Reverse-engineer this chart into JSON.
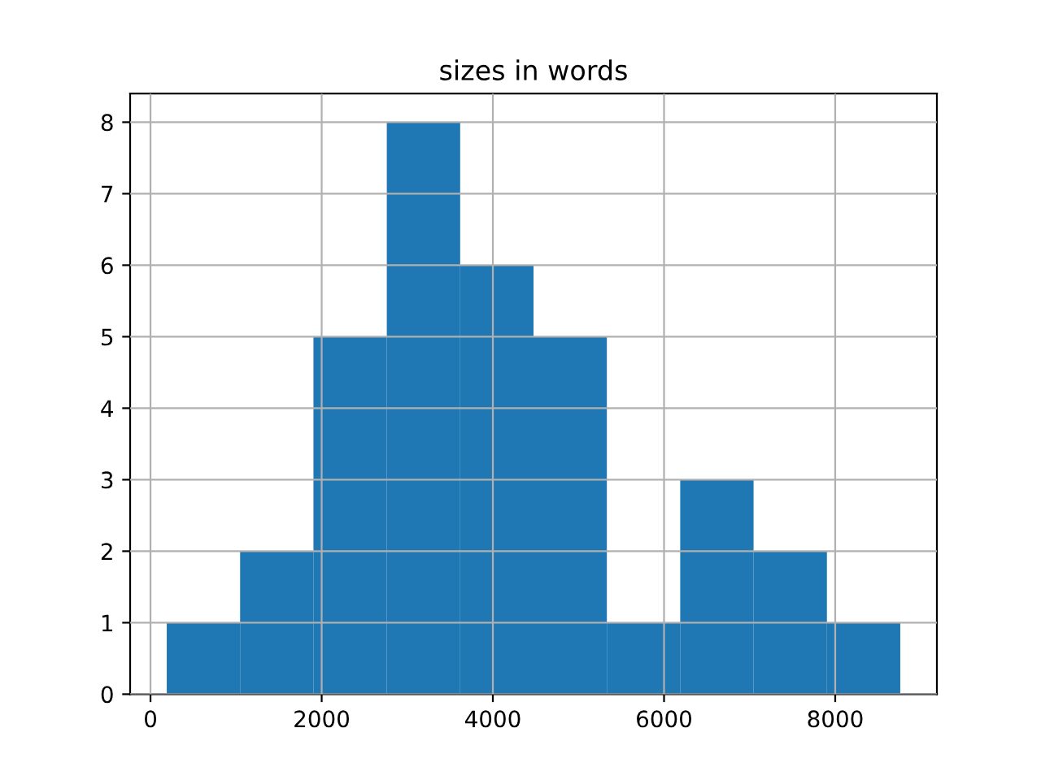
{
  "chart_data": {
    "type": "histogram",
    "title": "sizes in words",
    "bins": [
      190,
      1047,
      1904,
      2761,
      3618,
      4475,
      5332,
      6189,
      7046,
      7903,
      8760
    ],
    "values": [
      1,
      2,
      5,
      8,
      6,
      5,
      1,
      3,
      2,
      1
    ],
    "color": "#1f77b4",
    "xlim": [
      -238,
      9188
    ],
    "xticks": [
      0,
      2000,
      4000,
      6000,
      8000
    ],
    "ylim": [
      0,
      8.4
    ],
    "yticks": [
      0,
      1,
      2,
      3,
      4,
      5,
      6,
      7,
      8
    ],
    "grid": true
  }
}
